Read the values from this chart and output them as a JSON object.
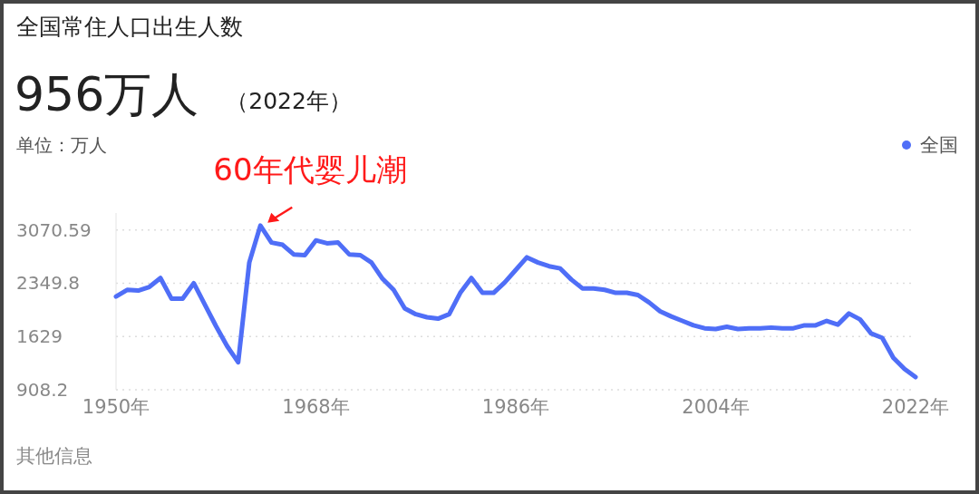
{
  "chart_data": {
    "type": "line",
    "title": "全国常住人口出生人数",
    "subtitle": "956万人",
    "ylabel": "单位：万人",
    "annotations": [
      "（2022年）",
      {
        "text": "60年代婴儿潮",
        "x": 1963,
        "y": 3132
      },
      "其他信息"
    ],
    "x": [
      1950,
      1951,
      1952,
      1953,
      1954,
      1955,
      1956,
      1957,
      1958,
      1959,
      1960,
      1961,
      1962,
      1963,
      1964,
      1965,
      1966,
      1967,
      1968,
      1969,
      1970,
      1971,
      1972,
      1973,
      1974,
      1975,
      1976,
      1977,
      1978,
      1979,
      1980,
      1981,
      1982,
      1983,
      1984,
      1985,
      1986,
      1987,
      1988,
      1989,
      1990,
      1991,
      1992,
      1993,
      1994,
      1995,
      1996,
      1997,
      1998,
      1999,
      2000,
      2001,
      2002,
      2003,
      2004,
      2005,
      2006,
      2007,
      2008,
      2009,
      2010,
      2011,
      2012,
      2013,
      2014,
      2015,
      2016,
      2017,
      2018,
      2019,
      2020,
      2021,
      2022
    ],
    "series": [
      {
        "name": "全国",
        "color": "#4f6ef7",
        "values": [
          2170,
          2260,
          2250,
          2300,
          2420,
          2140,
          2140,
          2350,
          2060,
          1770,
          1500,
          1280,
          2630,
          3130,
          2900,
          2870,
          2740,
          2730,
          2930,
          2890,
          2900,
          2740,
          2730,
          2630,
          2410,
          2260,
          2010,
          1930,
          1890,
          1870,
          1930,
          2220,
          2420,
          2220,
          2220,
          2360,
          2530,
          2700,
          2630,
          2580,
          2550,
          2400,
          2280,
          2280,
          2260,
          2220,
          2220,
          2190,
          2090,
          1970,
          1900,
          1840,
          1780,
          1740,
          1730,
          1760,
          1730,
          1740,
          1740,
          1750,
          1740,
          1740,
          1780,
          1780,
          1840,
          1790,
          1940,
          1860,
          1670,
          1610,
          1340,
          1190,
          1080
        ]
      }
    ],
    "xlim": [
      1950,
      2022
    ],
    "xticks": [
      {
        "value": 1950,
        "label": "1950年"
      },
      {
        "value": 1968,
        "label": "1968年"
      },
      {
        "value": 1986,
        "label": "1986年"
      },
      {
        "value": 2004,
        "label": "2004年"
      },
      {
        "value": 2022,
        "label": "2022年"
      }
    ],
    "ylim": [
      908.2,
      3300
    ],
    "yticks": [
      908.2,
      1629,
      2349.8,
      3070.59
    ],
    "grid": "y",
    "legend": "top right",
    "marker": "none",
    "line_style": "solid"
  }
}
